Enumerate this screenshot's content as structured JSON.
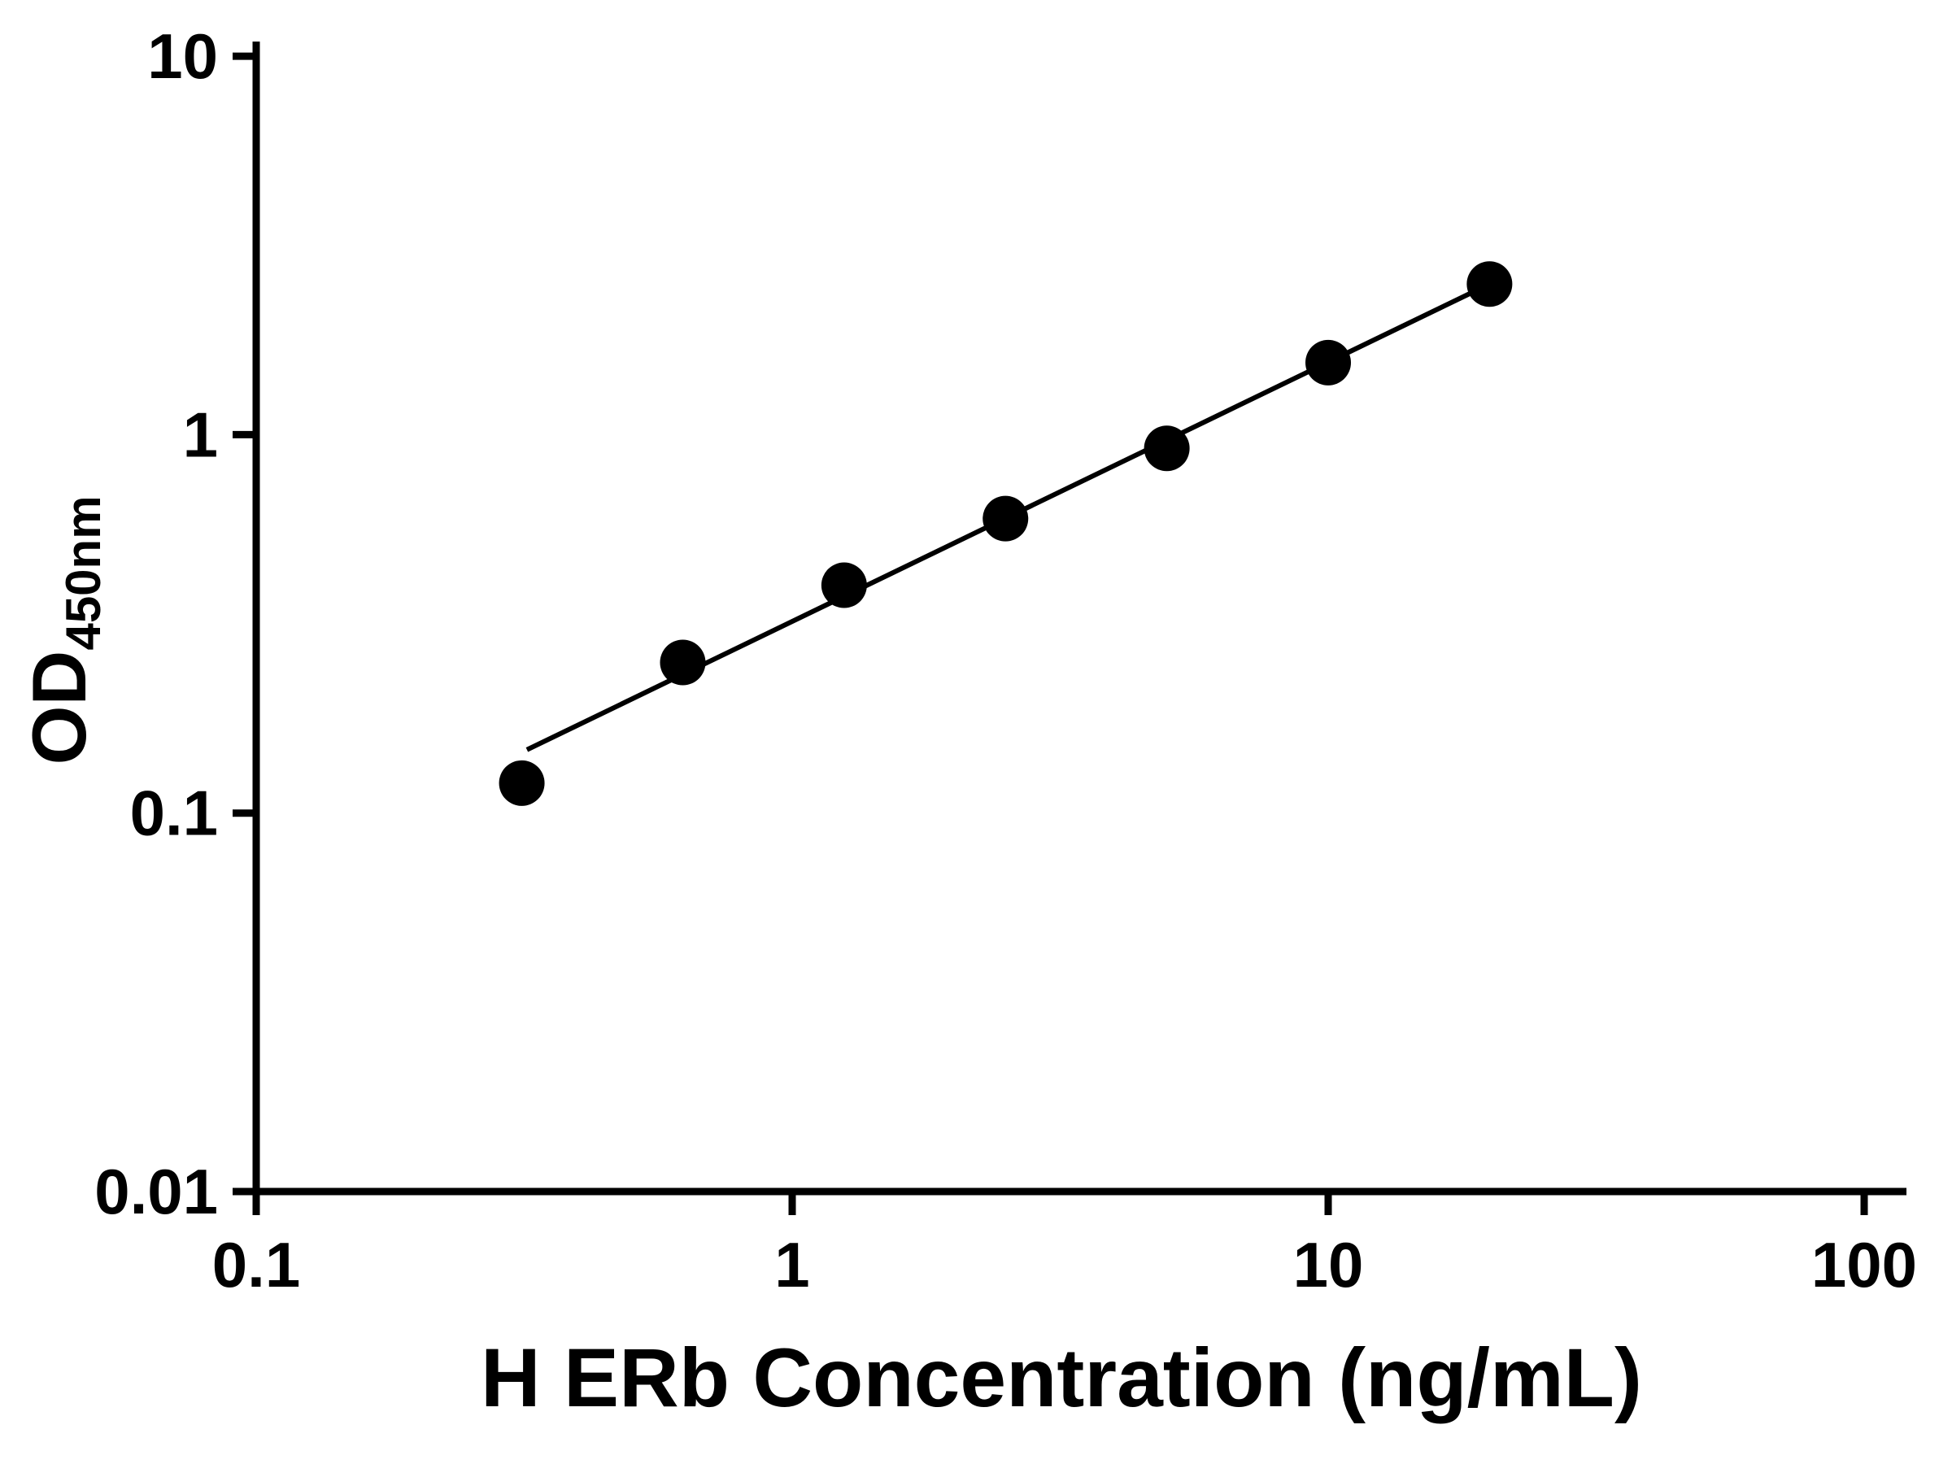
{
  "figure": {
    "background": "#ffffff",
    "axis_color": "#000000"
  },
  "chart_data": {
    "type": "scatter",
    "title": "",
    "xlabel": "H ERb Concentration (ng/mL)",
    "ylabel_main": "OD",
    "ylabel_sub": "450nm",
    "x_scale": "log",
    "y_scale": "log",
    "xlim": [
      0.1,
      100
    ],
    "ylim": [
      0.01,
      10
    ],
    "x_ticks": [
      0.1,
      1,
      10,
      100
    ],
    "x_tick_labels": [
      "0.1",
      "1",
      "10",
      "100"
    ],
    "y_ticks": [
      0.01,
      0.1,
      1,
      10
    ],
    "y_tick_labels": [
      "0.01",
      "0.1",
      "1",
      "10"
    ],
    "grid": false,
    "points": {
      "x": [
        0.313,
        0.625,
        1.25,
        2.5,
        5,
        10,
        20
      ],
      "y": [
        0.12,
        0.25,
        0.4,
        0.6,
        0.92,
        1.55,
        2.5
      ]
    },
    "fit_line": {
      "x1": 0.32,
      "y1": 0.147,
      "x2": 20,
      "y2": 2.5
    },
    "marker_color": "#000000",
    "line_color": "#000000"
  }
}
